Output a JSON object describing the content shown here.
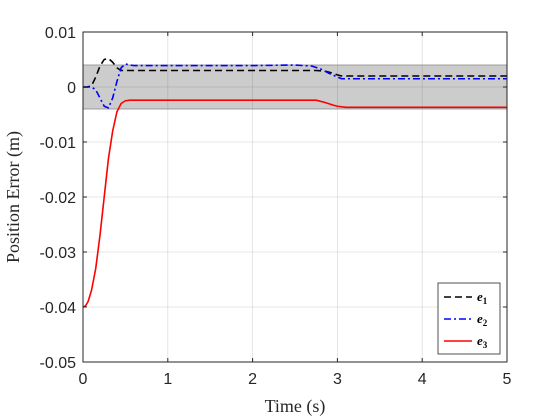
{
  "chart_data": {
    "type": "line",
    "xlabel": "Time (s)",
    "ylabel": "Position Error (m)",
    "xlim": [
      0,
      5
    ],
    "ylim": [
      -0.05,
      0.01
    ],
    "xticks": [
      0,
      1,
      2,
      3,
      4,
      5
    ],
    "xtick_labels": [
      "0",
      "1",
      "2",
      "3",
      "4",
      "5"
    ],
    "yticks": [
      0.01,
      0,
      -0.01,
      -0.02,
      -0.03,
      -0.04,
      -0.05
    ],
    "ytick_labels": [
      "0.01",
      "0",
      "-0.01",
      "-0.02",
      "-0.03",
      "-0.04",
      "-0.05"
    ],
    "grid": true,
    "legend_position": "bottom-right",
    "band": {
      "ymin": -0.004,
      "ymax": 0.004,
      "color": "#cccccc"
    },
    "series": [
      {
        "name": "e",
        "subscript": "1",
        "color": "#000000",
        "style": "dashed",
        "x": [
          0,
          0.05,
          0.1,
          0.15,
          0.2,
          0.25,
          0.3,
          0.35,
          0.4,
          0.45,
          0.5,
          0.6,
          0.8,
          1.0,
          1.5,
          2.0,
          2.5,
          2.75,
          2.85,
          2.95,
          3.0,
          3.05,
          3.1,
          3.2,
          3.5,
          4.0,
          4.5,
          5.0
        ],
        "y": [
          0,
          0,
          0.0002,
          0.0018,
          0.0038,
          0.005,
          0.0052,
          0.0045,
          0.0035,
          0.003,
          0.003,
          0.003,
          0.003,
          0.003,
          0.003,
          0.003,
          0.003,
          0.003,
          0.0029,
          0.0025,
          0.0022,
          0.002,
          0.002,
          0.002,
          0.002,
          0.002,
          0.002,
          0.002
        ]
      },
      {
        "name": "e",
        "subscript": "2",
        "color": "#0000ff",
        "style": "dashdot",
        "x": [
          0,
          0.1,
          0.15,
          0.2,
          0.25,
          0.3,
          0.35,
          0.4,
          0.45,
          0.5,
          0.55,
          0.6,
          0.8,
          1.0,
          1.5,
          2.0,
          2.5,
          2.7,
          2.8,
          2.9,
          3.0,
          3.05,
          3.1,
          3.2,
          3.5,
          4.0,
          4.5,
          5.0
        ],
        "y": [
          0,
          0,
          -0.0005,
          -0.002,
          -0.0035,
          -0.0038,
          -0.002,
          0.001,
          0.0035,
          0.0042,
          0.004,
          0.0039,
          0.0039,
          0.0039,
          0.0039,
          0.0039,
          0.004,
          0.0038,
          0.0033,
          0.0025,
          0.0018,
          0.0015,
          0.0015,
          0.0015,
          0.0015,
          0.0015,
          0.0015,
          0.0015
        ]
      },
      {
        "name": "e",
        "subscript": "3",
        "color": "#ff0000",
        "style": "solid",
        "x": [
          0,
          0.03,
          0.06,
          0.1,
          0.15,
          0.2,
          0.25,
          0.3,
          0.35,
          0.4,
          0.45,
          0.5,
          0.55,
          0.6,
          0.8,
          1.0,
          1.5,
          2.0,
          2.5,
          2.75,
          2.85,
          2.95,
          3.0,
          3.1,
          3.2,
          3.5,
          4.0,
          4.5,
          5.0
        ],
        "y": [
          -0.04,
          -0.0398,
          -0.039,
          -0.037,
          -0.033,
          -0.027,
          -0.02,
          -0.013,
          -0.008,
          -0.0045,
          -0.003,
          -0.0025,
          -0.0024,
          -0.0024,
          -0.0024,
          -0.0024,
          -0.0024,
          -0.0024,
          -0.0024,
          -0.0024,
          -0.0028,
          -0.0033,
          -0.0035,
          -0.0037,
          -0.0037,
          -0.0037,
          -0.0037,
          -0.0037,
          -0.0037
        ]
      }
    ]
  }
}
